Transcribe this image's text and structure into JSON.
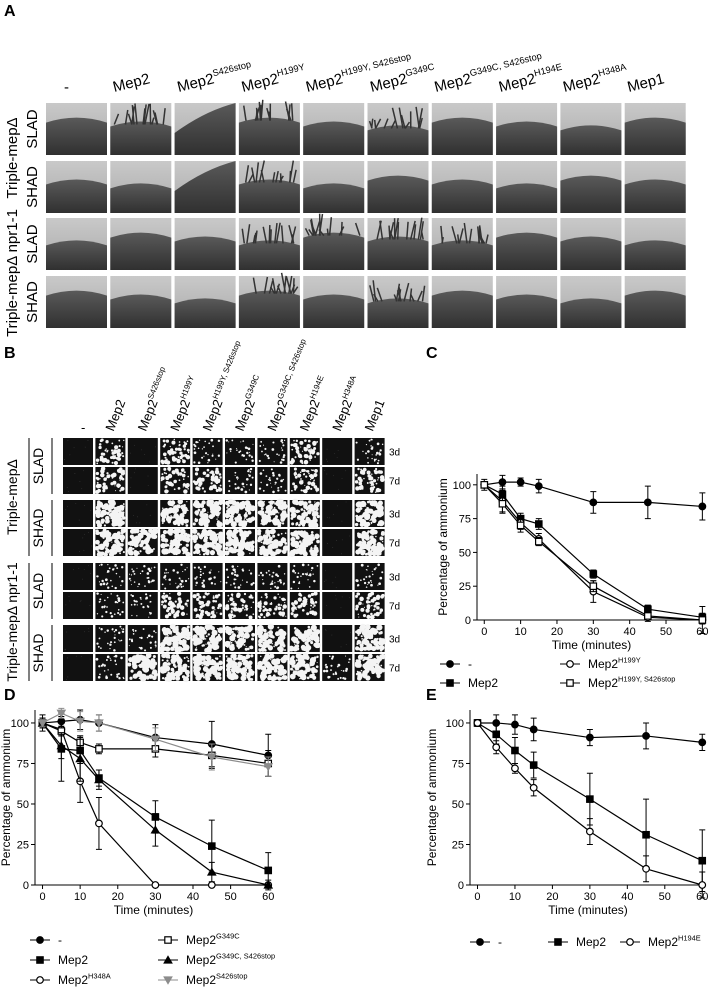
{
  "panel_a": {
    "label": "A"
  },
  "panel_b": {
    "label": "B",
    "times": [
      "3d",
      "7d"
    ]
  },
  "strains": [
    {
      "name": "-"
    },
    {
      "name": "Mep2"
    },
    {
      "name": "Mep2",
      "sup": "S426stop"
    },
    {
      "name": "Mep2",
      "sup": "H199Y"
    },
    {
      "name": "Mep2",
      "sup": "H199Y, S426stop"
    },
    {
      "name": "Mep2",
      "sup": "G349C"
    },
    {
      "name": "Mep2",
      "sup": "G349C, S426stop"
    },
    {
      "name": "Mep2",
      "sup": "H194E"
    },
    {
      "name": "Mep2",
      "sup": "H348A"
    },
    {
      "name": "Mep1"
    }
  ],
  "row_groups": [
    {
      "label": "Triple-mepΔ",
      "media": [
        "SLAD",
        "SHAD"
      ]
    },
    {
      "label": "Triple-mepΔ npr1-1",
      "media": [
        "SLAD",
        "SHAD"
      ]
    }
  ],
  "chart_data": [
    {
      "type": "line",
      "panel": "C",
      "xlabel": "Time (minutes)",
      "ylabel": "Percentage of ammonium",
      "xlim": [
        -2,
        61
      ],
      "ylim": [
        0,
        108
      ],
      "xticks": [
        0,
        10,
        20,
        30,
        40,
        50,
        60
      ],
      "yticks": [
        0,
        25,
        50,
        75,
        100
      ],
      "x": [
        0,
        5,
        10,
        15,
        30,
        45,
        60
      ],
      "series": [
        {
          "name": "-",
          "marker": "circle-filled",
          "color": "#000000",
          "values": [
            100,
            102,
            102,
            99,
            87,
            87,
            84
          ],
          "errors": [
            4,
            5,
            3,
            5,
            8,
            12,
            10
          ]
        },
        {
          "name": "Mep2",
          "marker": "square-filled",
          "color": "#000000",
          "values": [
            100,
            93,
            75,
            71,
            34,
            8,
            2
          ],
          "errors": [
            2,
            6,
            4,
            4,
            3,
            3,
            3
          ]
        },
        {
          "name": "Mep2",
          "sup": "H199Y",
          "marker": "circle-open",
          "color": "#000000",
          "values": [
            100,
            88,
            72,
            60,
            21,
            2,
            0
          ],
          "errors": [
            2,
            8,
            5,
            4,
            8,
            3,
            10
          ]
        },
        {
          "name": "Mep2",
          "sup": "H199Y, S426stop",
          "marker": "square-open",
          "color": "#000000",
          "values": [
            100,
            86,
            70,
            58,
            25,
            3,
            0
          ],
          "errors": [
            2,
            7,
            5,
            3,
            4,
            2,
            3
          ]
        }
      ]
    },
    {
      "type": "line",
      "panel": "D",
      "xlabel": "Time (minutes)",
      "ylabel": "Percentage of ammonium",
      "xlim": [
        -2,
        61
      ],
      "ylim": [
        0,
        108
      ],
      "xticks": [
        0,
        10,
        20,
        30,
        40,
        50,
        60
      ],
      "yticks": [
        0,
        25,
        50,
        75,
        100
      ],
      "x": [
        0,
        5,
        10,
        15,
        30,
        45,
        60
      ],
      "series": [
        {
          "name": "-",
          "marker": "circle-filled",
          "color": "#000000",
          "values": [
            100,
            101,
            102,
            100,
            91,
            87,
            80
          ],
          "errors": [
            3,
            5,
            6,
            5,
            8,
            14,
            13
          ]
        },
        {
          "name": "Mep2",
          "marker": "square-filled",
          "color": "#000000",
          "values": [
            100,
            84,
            83,
            66,
            42,
            24,
            9
          ],
          "errors": [
            5,
            20,
            8,
            5,
            10,
            16,
            11
          ]
        },
        {
          "name": "Mep2",
          "sup": "H348A",
          "marker": "circle-open",
          "color": "#000000",
          "values": [
            100,
            96,
            64,
            38,
            0,
            0,
            0
          ],
          "errors": [
            2,
            4,
            13,
            16,
            0,
            0,
            0
          ]
        },
        {
          "name": "Mep2",
          "sup": "G349C",
          "marker": "square-open",
          "color": "#000000",
          "values": [
            100,
            95,
            88,
            84,
            84,
            80,
            75
          ],
          "errors": [
            2,
            3,
            4,
            3,
            5,
            8,
            8
          ]
        },
        {
          "name": "Mep2",
          "sup": "G349C, S426stop",
          "marker": "triangle-filled",
          "color": "#000000",
          "values": [
            100,
            86,
            78,
            65,
            34,
            8,
            0
          ],
          "errors": [
            3,
            8,
            14,
            6,
            10,
            6,
            3
          ]
        },
        {
          "name": "Mep2",
          "sup": "S426stop",
          "marker": "triangle-down",
          "color": "#8c8c8c",
          "values": [
            100,
            106,
            101,
            100,
            90,
            79,
            73
          ],
          "errors": [
            2,
            3,
            6,
            5,
            7,
            8,
            6
          ]
        }
      ]
    },
    {
      "type": "line",
      "panel": "E",
      "xlabel": "Time (minutes)",
      "ylabel": "Percentage of ammonium",
      "xlim": [
        -2,
        61
      ],
      "ylim": [
        0,
        108
      ],
      "xticks": [
        0,
        10,
        20,
        30,
        40,
        50,
        60
      ],
      "yticks": [
        0,
        25,
        50,
        75,
        100
      ],
      "x": [
        0,
        5,
        10,
        15,
        30,
        45,
        60
      ],
      "series": [
        {
          "name": "-",
          "marker": "circle-filled",
          "color": "#000000",
          "values": [
            100,
            100,
            99,
            96,
            91,
            92,
            88
          ],
          "errors": [
            2,
            5,
            6,
            7,
            5,
            8,
            5
          ]
        },
        {
          "name": "Mep2",
          "marker": "square-filled",
          "color": "#000000",
          "values": [
            100,
            93,
            83,
            74,
            53,
            31,
            15
          ],
          "errors": [
            2,
            6,
            8,
            8,
            16,
            22,
            19
          ]
        },
        {
          "name": "Mep2",
          "sup": "H194E",
          "marker": "circle-open",
          "color": "#000000",
          "values": [
            100,
            85,
            72,
            60,
            33,
            10,
            0
          ],
          "errors": [
            2,
            4,
            3,
            5,
            8,
            8,
            8
          ]
        }
      ]
    }
  ]
}
